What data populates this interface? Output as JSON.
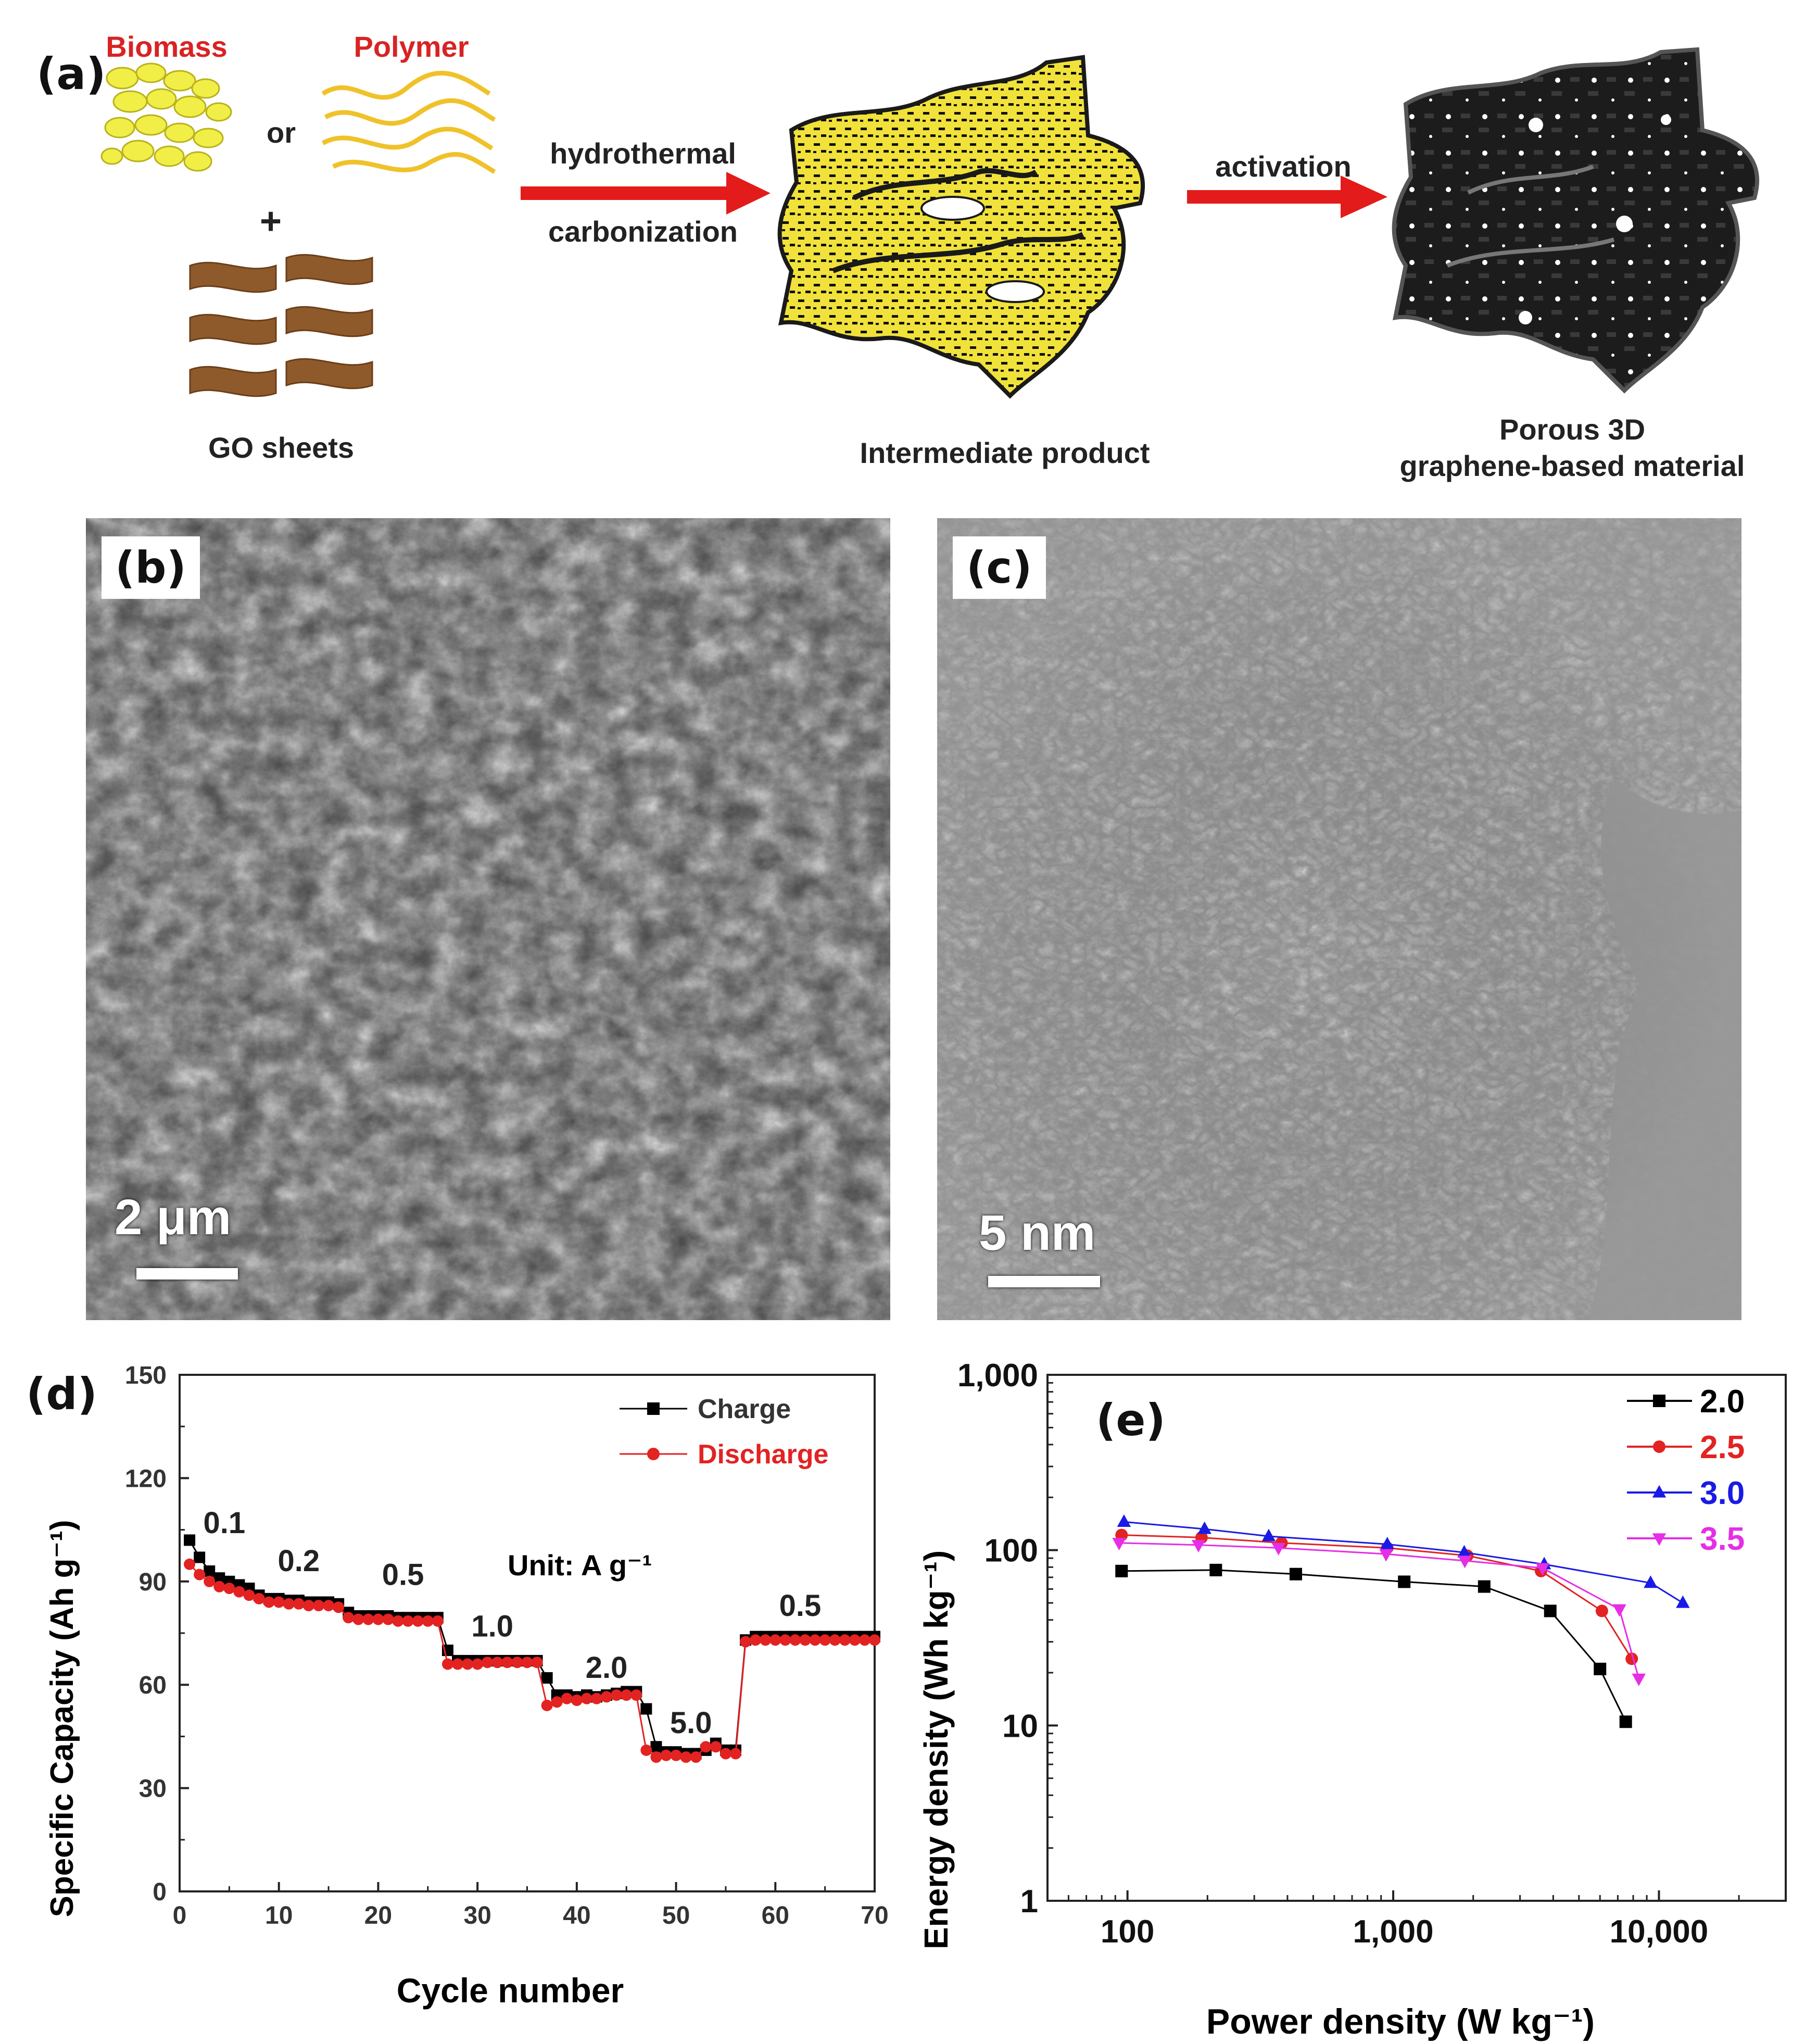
{
  "panels": {
    "a": {
      "tag": "(a)"
    },
    "b": {
      "tag": "(b)",
      "scale": "2 μm"
    },
    "c": {
      "tag": "(c)",
      "scale": "5 nm"
    },
    "d": {
      "tag": "(d)"
    },
    "e": {
      "tag": "(e)"
    }
  },
  "schematic": {
    "biomass": "Biomass",
    "polymer": "Polymer",
    "or": "or",
    "plus": "+",
    "go_sheets": "GO sheets",
    "arrow1_top": "hydrothermal",
    "arrow1_bottom": "carbonization",
    "intermediate": "Intermediate product",
    "arrow2_top": "activation",
    "product_line1": "Porous 3D",
    "product_line2": "graphene-based material",
    "colors": {
      "red": "#e31b1b",
      "yellow": "#f2e53d",
      "brown": "#8f5a2b",
      "dark": "#1a1a1a"
    }
  },
  "chart_data": [
    {
      "panel": "d",
      "type": "line",
      "xlabel": "Cycle number",
      "ylabel": "Specific Capacity (Ah g⁻¹)",
      "xlim": [
        0,
        70
      ],
      "ylim": [
        0,
        150
      ],
      "xticks": [
        0,
        10,
        20,
        30,
        40,
        50,
        60,
        70
      ],
      "yticks": [
        0,
        30,
        60,
        90,
        120,
        150
      ],
      "legend_position": "top-right",
      "annotation": "Unit: A g⁻¹",
      "rate_labels": [
        {
          "text": "0.1",
          "x": 4.5,
          "y": 104
        },
        {
          "text": "0.2",
          "x": 12,
          "y": 93
        },
        {
          "text": "0.5",
          "x": 22.5,
          "y": 89
        },
        {
          "text": "1.0",
          "x": 31.5,
          "y": 74
        },
        {
          "text": "2.0",
          "x": 43,
          "y": 62
        },
        {
          "text": "5.0",
          "x": 51.5,
          "y": 46
        },
        {
          "text": "0.5",
          "x": 62.5,
          "y": 80
        }
      ],
      "series": [
        {
          "name": "Charge",
          "color": "#000000",
          "marker": "square",
          "x": [
            1,
            2,
            3,
            4,
            5,
            6,
            7,
            8,
            9,
            10,
            11,
            12,
            13,
            14,
            15,
            16,
            17,
            18,
            19,
            20,
            21,
            22,
            23,
            24,
            25,
            26,
            27,
            28,
            29,
            30,
            31,
            32,
            33,
            34,
            35,
            36,
            37,
            38,
            39,
            40,
            41,
            42,
            43,
            44,
            45,
            46,
            47,
            48,
            49,
            50,
            51,
            52,
            53,
            54,
            55,
            56,
            57,
            58,
            59,
            60,
            61,
            62,
            63,
            64,
            65,
            66,
            67,
            68,
            69,
            70
          ],
          "values": [
            102,
            97,
            93,
            91,
            90,
            89,
            88,
            86,
            85,
            85,
            84.5,
            84.5,
            84,
            84,
            84,
            83.5,
            81,
            80,
            80,
            80,
            80,
            79.5,
            79.5,
            79.5,
            79.5,
            79.5,
            70,
            67,
            67,
            67,
            67,
            67,
            67,
            67,
            67,
            67,
            62,
            57,
            57,
            56.5,
            57,
            56.5,
            57,
            57.5,
            58,
            58,
            53,
            42,
            40.5,
            40.5,
            40,
            40,
            41,
            43,
            41,
            41,
            73,
            74,
            74,
            74,
            74,
            74,
            74,
            74,
            74,
            74,
            74,
            74,
            74,
            74
          ]
        },
        {
          "name": "Discharge",
          "color": "#e32222",
          "marker": "circle",
          "x": [
            1,
            2,
            3,
            4,
            5,
            6,
            7,
            8,
            9,
            10,
            11,
            12,
            13,
            14,
            15,
            16,
            17,
            18,
            19,
            20,
            21,
            22,
            23,
            24,
            25,
            26,
            27,
            28,
            29,
            30,
            31,
            32,
            33,
            34,
            35,
            36,
            37,
            38,
            39,
            40,
            41,
            42,
            43,
            44,
            45,
            46,
            47,
            48,
            49,
            50,
            51,
            52,
            53,
            54,
            55,
            56,
            57,
            58,
            59,
            60,
            61,
            62,
            63,
            64,
            65,
            66,
            67,
            68,
            69,
            70
          ],
          "values": [
            95,
            92,
            90,
            88.5,
            88,
            87,
            86,
            85,
            84,
            84,
            83.5,
            83.5,
            83,
            83,
            83,
            82.5,
            79.5,
            79,
            79,
            79,
            79,
            78.5,
            78.5,
            78.5,
            78.5,
            78.5,
            66,
            66,
            66,
            66,
            66.5,
            66.5,
            66.5,
            66.5,
            66.5,
            66.5,
            54,
            55,
            56,
            55.5,
            56,
            56,
            56.5,
            57,
            57,
            57,
            41,
            39,
            39.5,
            39.5,
            39,
            39,
            42,
            42,
            40,
            40,
            72.5,
            73,
            73,
            73,
            73,
            73,
            73,
            73,
            73,
            73,
            73,
            73,
            73,
            73
          ]
        }
      ]
    },
    {
      "panel": "e",
      "type": "line",
      "scale": "log-log",
      "xlabel": "Power density (W kg⁻¹)",
      "ylabel": "Energy density (Wh kg⁻¹)",
      "xlim": [
        50,
        30000
      ],
      "ylim": [
        1,
        1000
      ],
      "xtick_labels": [
        "100",
        "1,000",
        "10,000"
      ],
      "xtick_values": [
        100,
        1000,
        10000
      ],
      "ytick_labels": [
        "1",
        "10",
        "100",
        "1,000"
      ],
      "ytick_values": [
        1,
        10,
        100,
        1000
      ],
      "legend_position": "top-right",
      "series": [
        {
          "name": "2.0",
          "color": "#000000",
          "marker": "square",
          "x": [
            95,
            215,
            430,
            1100,
            2200,
            3900,
            6000,
            7500
          ],
          "values": [
            76,
            77,
            73,
            66,
            62,
            45,
            21,
            10.5
          ]
        },
        {
          "name": "2.5",
          "color": "#e32222",
          "marker": "circle",
          "x": [
            95,
            190,
            380,
            950,
            1900,
            3600,
            6100,
            7900
          ],
          "values": [
            122,
            118,
            110,
            103,
            93,
            76,
            45,
            24
          ]
        },
        {
          "name": "3.0",
          "color": "#1a1ae6",
          "marker": "triangle-up",
          "x": [
            97,
            195,
            340,
            950,
            1850,
            3700,
            9300,
            12300
          ],
          "values": [
            145,
            132,
            120,
            108,
            97,
            83,
            65,
            50
          ]
        },
        {
          "name": "3.5",
          "color": "#e62ee6",
          "marker": "triangle-down",
          "x": [
            93,
            185,
            370,
            940,
            1860,
            3650,
            7100,
            8400
          ],
          "values": [
            110,
            107,
            103,
            95,
            87,
            79,
            46,
            18.5
          ]
        }
      ]
    }
  ]
}
